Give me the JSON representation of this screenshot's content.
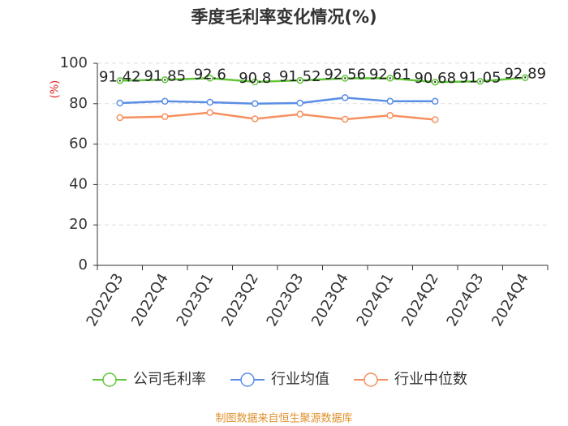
{
  "chart_data": {
    "type": "line",
    "title": "季度毛利率变化情况(%)",
    "ylabel": "(%)",
    "categories": [
      "2022Q3",
      "2022Q4",
      "2023Q1",
      "2023Q2",
      "2023Q3",
      "2023Q4",
      "2024Q1",
      "2024Q2",
      "2024Q3",
      "2024Q4"
    ],
    "series": [
      {
        "name": "公司毛利率",
        "color": "#5fc63a",
        "values": [
          91.42,
          91.85,
          92.6,
          90.8,
          91.52,
          92.56,
          92.61,
          90.68,
          91.05,
          92.89
        ]
      },
      {
        "name": "行业均值",
        "color": "#5b8ee6",
        "values": [
          80.3,
          81.2,
          80.7,
          80.0,
          80.3,
          83.0,
          81.2,
          81.2,
          null,
          null
        ]
      },
      {
        "name": "行业中位数",
        "color": "#f59060",
        "values": [
          73.1,
          73.6,
          75.6,
          72.5,
          74.8,
          72.3,
          74.2,
          72.1,
          null,
          null
        ]
      }
    ],
    "ylim": [
      0,
      100
    ],
    "yticks": [
      0,
      20,
      40,
      60,
      80,
      100
    ],
    "grid": true,
    "source": "制图数据来自恒生聚源数据库"
  }
}
